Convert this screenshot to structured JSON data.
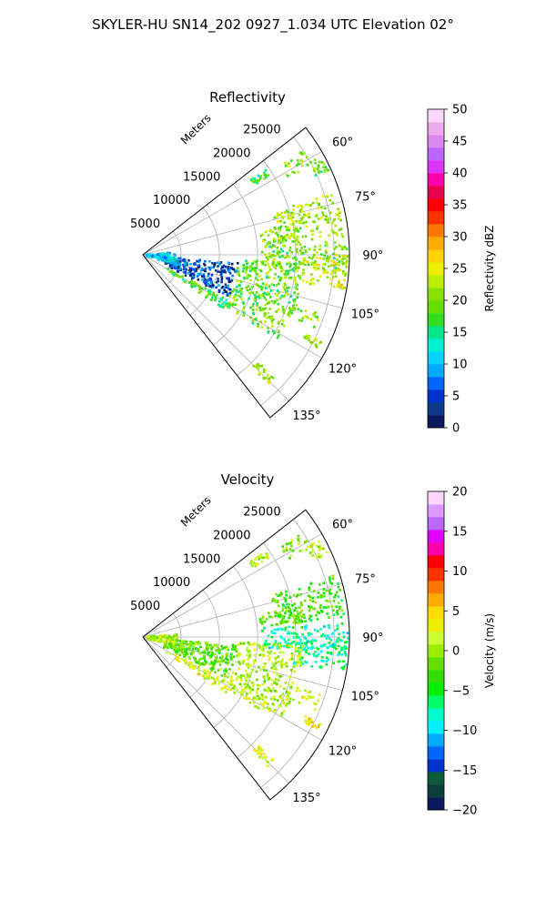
{
  "figure": {
    "title": "SKYLER-HU  SN14_202  0927_1.034 UTC Elevation 02°"
  },
  "chart_data": [
    {
      "type": "heatmap",
      "subtype": "polar-sector-radar",
      "title": "Reflectivity",
      "range_axis_label": "Meters",
      "range_ticks": [
        5000,
        10000,
        15000,
        20000,
        25000
      ],
      "range_tick_labels": [
        "5000",
        "10000",
        "15000",
        "20000",
        "25000"
      ],
      "rmax": 27000,
      "azimuth_range_deg": [
        52,
        142
      ],
      "azimuth_ticks": [
        60,
        75,
        90,
        105,
        120,
        135
      ],
      "azimuth_tick_labels": [
        "60°",
        "75°",
        "90°",
        "105°",
        "120°",
        "135°"
      ],
      "grid": true,
      "colorbar": {
        "label": "Reflectivity dBZ",
        "min": 0,
        "max": 50,
        "ticks": [
          0,
          5,
          10,
          15,
          20,
          25,
          30,
          35,
          40,
          45,
          50
        ],
        "tick_labels": [
          "0",
          "5",
          "10",
          "15",
          "20",
          "25",
          "30",
          "35",
          "40",
          "45",
          "50"
        ],
        "colors": [
          "#0a1a5c",
          "#0f3a8a",
          "#0033cc",
          "#0066ff",
          "#00aaff",
          "#00d4ff",
          "#00f0d0",
          "#00e68a",
          "#33dd22",
          "#66dd00",
          "#88e000",
          "#bbee00",
          "#eeee00",
          "#ffd200",
          "#ffaa00",
          "#ff7700",
          "#ff3300",
          "#ff0000",
          "#e6004d",
          "#ff00aa",
          "#dd33ff",
          "#bb66ff",
          "#dd88ee",
          "#eeaaee",
          "#ffd6ff"
        ]
      },
      "echo_regions": [
        {
          "az": [
            55,
            58
          ],
          "r": [
            17000,
            19500
          ],
          "value": 18
        },
        {
          "az": [
            57,
            62
          ],
          "r": [
            21500,
            25000
          ],
          "value": 20
        },
        {
          "az": [
            61,
            66
          ],
          "r": [
            24500,
            26800
          ],
          "value": 19
        },
        {
          "az": [
            72,
            85
          ],
          "r": [
            17500,
            26500
          ],
          "value": 22
        },
        {
          "az": [
            79,
            87
          ],
          "r": [
            15500,
            21000
          ],
          "value": 20
        },
        {
          "az": [
            86,
            95
          ],
          "r": [
            15500,
            26800
          ],
          "value": 20
        },
        {
          "az": [
            90,
            100
          ],
          "r": [
            20000,
            26800
          ],
          "value": 24
        },
        {
          "az": [
            108,
            113
          ],
          "r": [
            20500,
            24500
          ],
          "value": 21
        },
        {
          "az": [
            116,
            118
          ],
          "r": [
            23500,
            26000
          ],
          "value": 22
        },
        {
          "az": [
            133,
            136
          ],
          "r": [
            20500,
            23500
          ],
          "value": 23
        },
        {
          "az": [
            93,
            122
          ],
          "r": [
            12500,
            21000
          ],
          "value": 19
        },
        {
          "az": [
            118,
            124
          ],
          "r": [
            3500,
            13500
          ],
          "value": 17
        },
        {
          "az": [
            95,
            116
          ],
          "r": [
            3000,
            12500
          ],
          "value": 5
        },
        {
          "az": [
            85,
            108
          ],
          "r": [
            500,
            4500
          ],
          "value": 11
        }
      ]
    },
    {
      "type": "heatmap",
      "subtype": "polar-sector-radar",
      "title": "Velocity",
      "range_axis_label": "Meters",
      "range_ticks": [
        5000,
        10000,
        15000,
        20000,
        25000
      ],
      "range_tick_labels": [
        "5000",
        "10000",
        "15000",
        "20000",
        "25000"
      ],
      "rmax": 27000,
      "azimuth_range_deg": [
        52,
        142
      ],
      "azimuth_ticks": [
        60,
        75,
        90,
        105,
        120,
        135
      ],
      "azimuth_tick_labels": [
        "60°",
        "75°",
        "90°",
        "105°",
        "120°",
        "135°"
      ],
      "grid": true,
      "colorbar": {
        "label": "Velocity (m/s)",
        "min": -20,
        "max": 20,
        "ticks": [
          -20,
          -15,
          -10,
          -5,
          0,
          5,
          10,
          15,
          20
        ],
        "tick_labels": [
          "−20",
          "−15",
          "−10",
          "−5",
          "0",
          "5",
          "10",
          "15",
          "20"
        ],
        "colors": [
          "#0a1a5c",
          "#0b3d3d",
          "#0d5a3a",
          "#0033cc",
          "#0066ff",
          "#00aaff",
          "#00f0ff",
          "#00ffcc",
          "#00ff66",
          "#00ee00",
          "#33dd00",
          "#66dd00",
          "#99ee00",
          "#ccff33",
          "#eeee00",
          "#ffdd00",
          "#ffaa00",
          "#ff7700",
          "#ff3300",
          "#ff0000",
          "#ff00aa",
          "#dd00ff",
          "#bb66ff",
          "#dd99ff",
          "#ffd6ff"
        ]
      },
      "echo_regions": [
        {
          "az": [
            55,
            58
          ],
          "r": [
            17000,
            19500
          ],
          "value": 1
        },
        {
          "az": [
            57,
            62
          ],
          "r": [
            21500,
            25000
          ],
          "value": 0
        },
        {
          "az": [
            61,
            66
          ],
          "r": [
            24500,
            26800
          ],
          "value": 1
        },
        {
          "az": [
            72,
            85
          ],
          "r": [
            17500,
            26500
          ],
          "value": -3
        },
        {
          "az": [
            79,
            87
          ],
          "r": [
            15500,
            21000
          ],
          "value": -2
        },
        {
          "az": [
            86,
            95
          ],
          "r": [
            15500,
            26800
          ],
          "value": -8
        },
        {
          "az": [
            90,
            100
          ],
          "r": [
            20000,
            26800
          ],
          "value": -7
        },
        {
          "az": [
            108,
            113
          ],
          "r": [
            20500,
            24500
          ],
          "value": 2
        },
        {
          "az": [
            116,
            118
          ],
          "r": [
            23500,
            26000
          ],
          "value": 3
        },
        {
          "az": [
            133,
            136
          ],
          "r": [
            20500,
            23500
          ],
          "value": 2
        },
        {
          "az": [
            93,
            122
          ],
          "r": [
            12500,
            21000
          ],
          "value": 1
        },
        {
          "az": [
            118,
            124
          ],
          "r": [
            3500,
            13500
          ],
          "value": 3
        },
        {
          "az": [
            95,
            116
          ],
          "r": [
            3000,
            12500
          ],
          "value": -2
        },
        {
          "az": [
            85,
            108
          ],
          "r": [
            500,
            4500
          ],
          "value": 1
        }
      ]
    }
  ]
}
